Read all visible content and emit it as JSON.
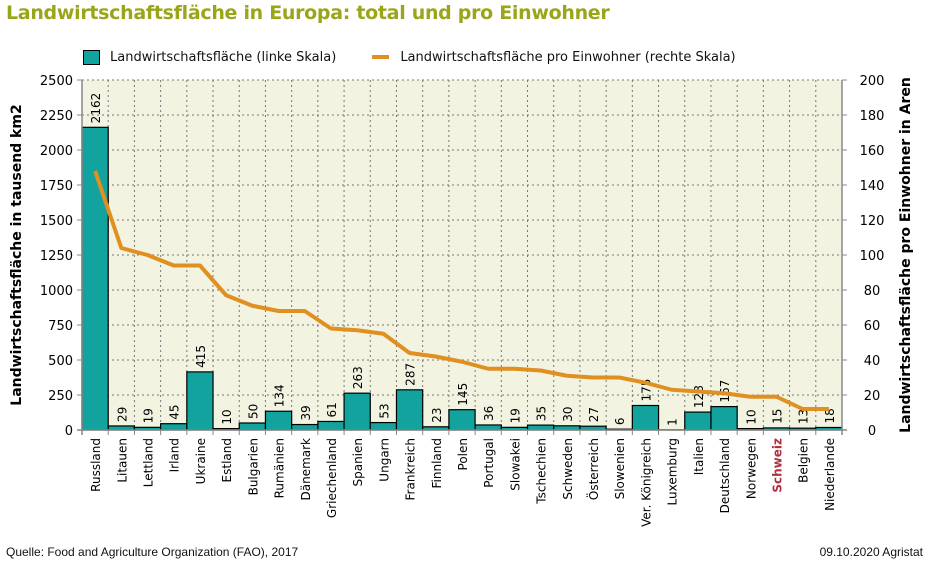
{
  "chart_data": {
    "type": "bar",
    "title": "Landwirtschaftsfläche in Europa: total und pro Einwohner",
    "categories": [
      "Russland",
      "Litauen",
      "Lettland",
      "Irland",
      "Ukraine",
      "Estland",
      "Bulgarien",
      "Rumänien",
      "Dänemark",
      "Griechenland",
      "Spanien",
      "Ungarn",
      "Frankreich",
      "Finnland",
      "Polen",
      "Portugal",
      "Slowakei",
      "Tschechien",
      "Schweden",
      "Österreich",
      "Slowenien",
      "Ver. Königreich",
      "Luxemburg",
      "Italien",
      "Deutschland",
      "Norwegen",
      "Schweiz",
      "Belgien",
      "Niederlande"
    ],
    "highlight_category": "Schweiz",
    "series": [
      {
        "name": "Landwirtschaftsfläche (linke Skala)",
        "type": "bar",
        "axis": "left",
        "color": "#12a39e",
        "values": [
          2162,
          29,
          19,
          45,
          415,
          10,
          50,
          134,
          39,
          61,
          263,
          53,
          287,
          23,
          145,
          36,
          19,
          35,
          30,
          27,
          6,
          175,
          1,
          128,
          167,
          10,
          15,
          13,
          18
        ]
      },
      {
        "name": "Landwirtschaftsfläche pro Einwohner (rechte Skala)",
        "type": "line",
        "axis": "right",
        "color": "#df9020",
        "values": [
          148,
          104,
          100,
          94,
          94,
          77,
          71,
          68,
          68,
          58,
          57,
          55,
          44,
          42,
          39,
          35,
          35,
          34,
          31,
          30,
          30,
          27,
          23,
          22,
          21,
          19,
          19,
          12,
          12
        ]
      }
    ],
    "ylabel": "Landwirtschaftsfläche in tausend km2",
    "y2label": "Landwirtschaftsfläche pro Einwohner in Aren",
    "ylim": [
      0,
      2500
    ],
    "y2lim": [
      0,
      200
    ],
    "yticks": [
      "0",
      "250",
      "500",
      "750",
      "1000",
      "1250",
      "1500",
      "1750",
      "2000",
      "2250",
      "2500"
    ],
    "y2ticks": [
      "0",
      "20",
      "40",
      "60",
      "80",
      "100",
      "120",
      "140",
      "160",
      "180",
      "200"
    ],
    "grid": true,
    "legend": "top",
    "colors": {
      "background": "#f3f3e2",
      "title": "#9aa51a",
      "highlight_label": "#b03040"
    }
  },
  "legend": {
    "bar_label": "Landwirtschaftsfläche (linke Skala)",
    "line_label": "Landwirtschaftsfläche pro Einwohner (rechte Skala)"
  },
  "footer": {
    "source": "Quelle: Food and Agriculture Organization (FAO), 2017",
    "credit": "09.10.2020 Agristat"
  }
}
